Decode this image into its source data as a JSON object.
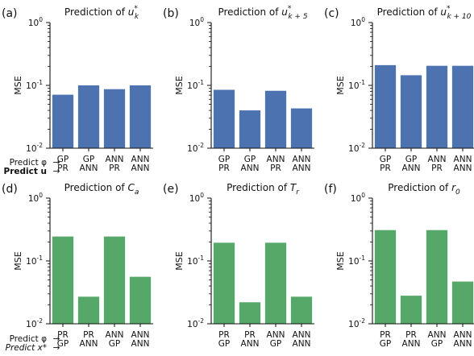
{
  "figure": {
    "pred_labels": {
      "top_phi": "Predict φ",
      "top_u": "Predict u",
      "bottom_phi": "Predict φ",
      "bottom_x": "Predict x*"
    }
  },
  "chart_data": [
    {
      "type": "bar",
      "panel": "(a)",
      "title": "Prediction of u_k*",
      "title_main": "Prediction of ",
      "title_var": "u",
      "title_sub": "k",
      "title_sup": "*",
      "ylabel": "MSE",
      "yscale": "log",
      "ylim": [
        0.01,
        1
      ],
      "yticks": [
        {
          "v": 1,
          "b": "10",
          "e": "0"
        },
        {
          "v": 0.1,
          "b": "10",
          "e": "-1"
        },
        {
          "v": 0.01,
          "b": "10",
          "e": "-2"
        }
      ],
      "categories": [
        [
          "GP",
          "PR"
        ],
        [
          "GP",
          "ANN"
        ],
        [
          "ANN",
          "PR"
        ],
        [
          "ANN",
          "ANN"
        ]
      ],
      "values": [
        0.071,
        0.1,
        0.087,
        0.1
      ],
      "color": "#4c72b0"
    },
    {
      "type": "bar",
      "panel": "(b)",
      "title": "Prediction of u_k+5*",
      "title_main": "Prediction of ",
      "title_var": "u",
      "title_sub": "k + 5",
      "title_sup": "*",
      "ylabel": "MSE",
      "yscale": "log",
      "ylim": [
        0.01,
        1
      ],
      "yticks": [
        {
          "v": 1,
          "b": "10",
          "e": "0"
        },
        {
          "v": 0.1,
          "b": "10",
          "e": "-1"
        },
        {
          "v": 0.01,
          "b": "10",
          "e": "-2"
        }
      ],
      "categories": [
        [
          "GP",
          "PR"
        ],
        [
          "GP",
          "ANN"
        ],
        [
          "ANN",
          "PR"
        ],
        [
          "ANN",
          "ANN"
        ]
      ],
      "values": [
        0.085,
        0.04,
        0.082,
        0.043
      ],
      "color": "#4c72b0"
    },
    {
      "type": "bar",
      "panel": "(c)",
      "title": "Prediction of u_k+10*",
      "title_main": "Prediction of ",
      "title_var": "u",
      "title_sub": "k + 10",
      "title_sup": "*",
      "ylabel": "MSE",
      "yscale": "log",
      "ylim": [
        0.01,
        1
      ],
      "yticks": [
        {
          "v": 1,
          "b": "10",
          "e": "0"
        },
        {
          "v": 0.1,
          "b": "10",
          "e": "-1"
        },
        {
          "v": 0.01,
          "b": "10",
          "e": "-2"
        }
      ],
      "categories": [
        [
          "GP",
          "PR"
        ],
        [
          "GP",
          "ANN"
        ],
        [
          "ANN",
          "PR"
        ],
        [
          "ANN",
          "ANN"
        ]
      ],
      "values": [
        0.21,
        0.145,
        0.205,
        0.205
      ],
      "color": "#4c72b0"
    },
    {
      "type": "bar",
      "panel": "(d)",
      "title": "Prediction of C_a",
      "title_main": "Prediction of ",
      "title_var": "C",
      "title_sub": "a",
      "title_sup": "",
      "ylabel": "MSE",
      "yscale": "log",
      "ylim": [
        0.01,
        1
      ],
      "yticks": [
        {
          "v": 1,
          "b": "10",
          "e": "0"
        },
        {
          "v": 0.1,
          "b": "10",
          "e": "-1"
        },
        {
          "v": 0.01,
          "b": "10",
          "e": "-2"
        }
      ],
      "categories": [
        [
          "PR",
          "GP"
        ],
        [
          "PR",
          "ANN"
        ],
        [
          "ANN",
          "GP"
        ],
        [
          "ANN",
          "ANN"
        ]
      ],
      "values": [
        0.245,
        0.027,
        0.245,
        0.056
      ],
      "color": "#55a868"
    },
    {
      "type": "bar",
      "panel": "(e)",
      "title": "Prediction of T_r",
      "title_main": "Prediction of ",
      "title_var": "T",
      "title_sub": "r",
      "title_sup": "",
      "ylabel": "MSE",
      "yscale": "log",
      "ylim": [
        0.01,
        1
      ],
      "yticks": [
        {
          "v": 1,
          "b": "10",
          "e": "0"
        },
        {
          "v": 0.1,
          "b": "10",
          "e": "-1"
        },
        {
          "v": 0.01,
          "b": "10",
          "e": "-2"
        }
      ],
      "categories": [
        [
          "PR",
          "GP"
        ],
        [
          "PR",
          "ANN"
        ],
        [
          "ANN",
          "GP"
        ],
        [
          "ANN",
          "ANN"
        ]
      ],
      "values": [
        0.195,
        0.022,
        0.195,
        0.027
      ],
      "color": "#55a868"
    },
    {
      "type": "bar",
      "panel": "(f)",
      "title": "Prediction of r_0",
      "title_main": "Prediction of ",
      "title_var": "r",
      "title_sub": "0",
      "title_sup": "",
      "ylabel": "MSE",
      "yscale": "log",
      "ylim": [
        0.01,
        1
      ],
      "yticks": [
        {
          "v": 1,
          "b": "10",
          "e": "0"
        },
        {
          "v": 0.1,
          "b": "10",
          "e": "-1"
        },
        {
          "v": 0.01,
          "b": "10",
          "e": "-2"
        }
      ],
      "categories": [
        [
          "PR",
          "GP"
        ],
        [
          "PR",
          "ANN"
        ],
        [
          "ANN",
          "GP"
        ],
        [
          "ANN",
          "ANN"
        ]
      ],
      "values": [
        0.31,
        0.028,
        0.31,
        0.047
      ],
      "color": "#55a868"
    }
  ]
}
